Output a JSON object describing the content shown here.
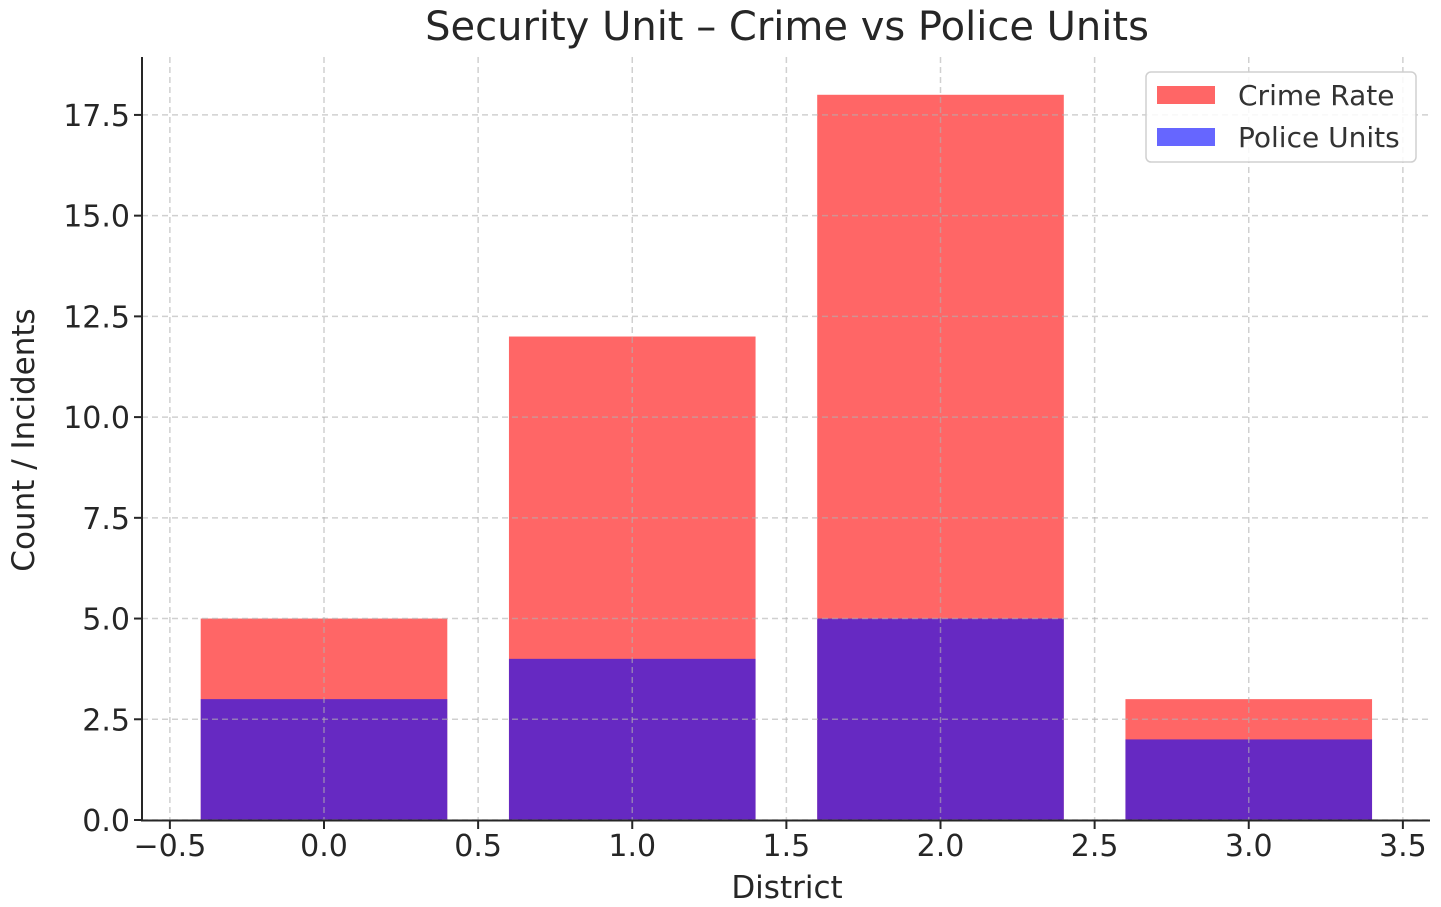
{
  "chart_data": {
    "type": "bar",
    "title": "Security Unit – Crime vs Police Units",
    "xlabel": "District",
    "ylabel": "Count / Incidents",
    "x": [
      0,
      1,
      2,
      3
    ],
    "bar_width": 0.8,
    "series": [
      {
        "name": "Crime Rate",
        "values": [
          5,
          12,
          18,
          3
        ],
        "color": "#ff0000",
        "alpha": 0.6
      },
      {
        "name": "Police Units",
        "values": [
          3,
          4,
          5,
          2
        ],
        "color": "#0000ff",
        "alpha": 0.6
      }
    ],
    "overlay": true,
    "xlim": [
      -0.59,
      3.59
    ],
    "ylim": [
      0,
      18.9
    ],
    "xticks": [
      "−0.5",
      "0.0",
      "0.5",
      "1.0",
      "1.5",
      "2.0",
      "2.5",
      "3.0",
      "3.5"
    ],
    "yticks": [
      "0.0",
      "2.5",
      "5.0",
      "7.5",
      "10.0",
      "12.5",
      "15.0",
      "17.5"
    ],
    "grid": true,
    "grid_style": "dashed",
    "legend_position": "upper right"
  },
  "colors": {
    "crime_fill": "#ff6666",
    "police_fill": "#6666ff",
    "overlap_fill": "#6628c0",
    "grid": "#cccccc",
    "axis": "#262626"
  }
}
